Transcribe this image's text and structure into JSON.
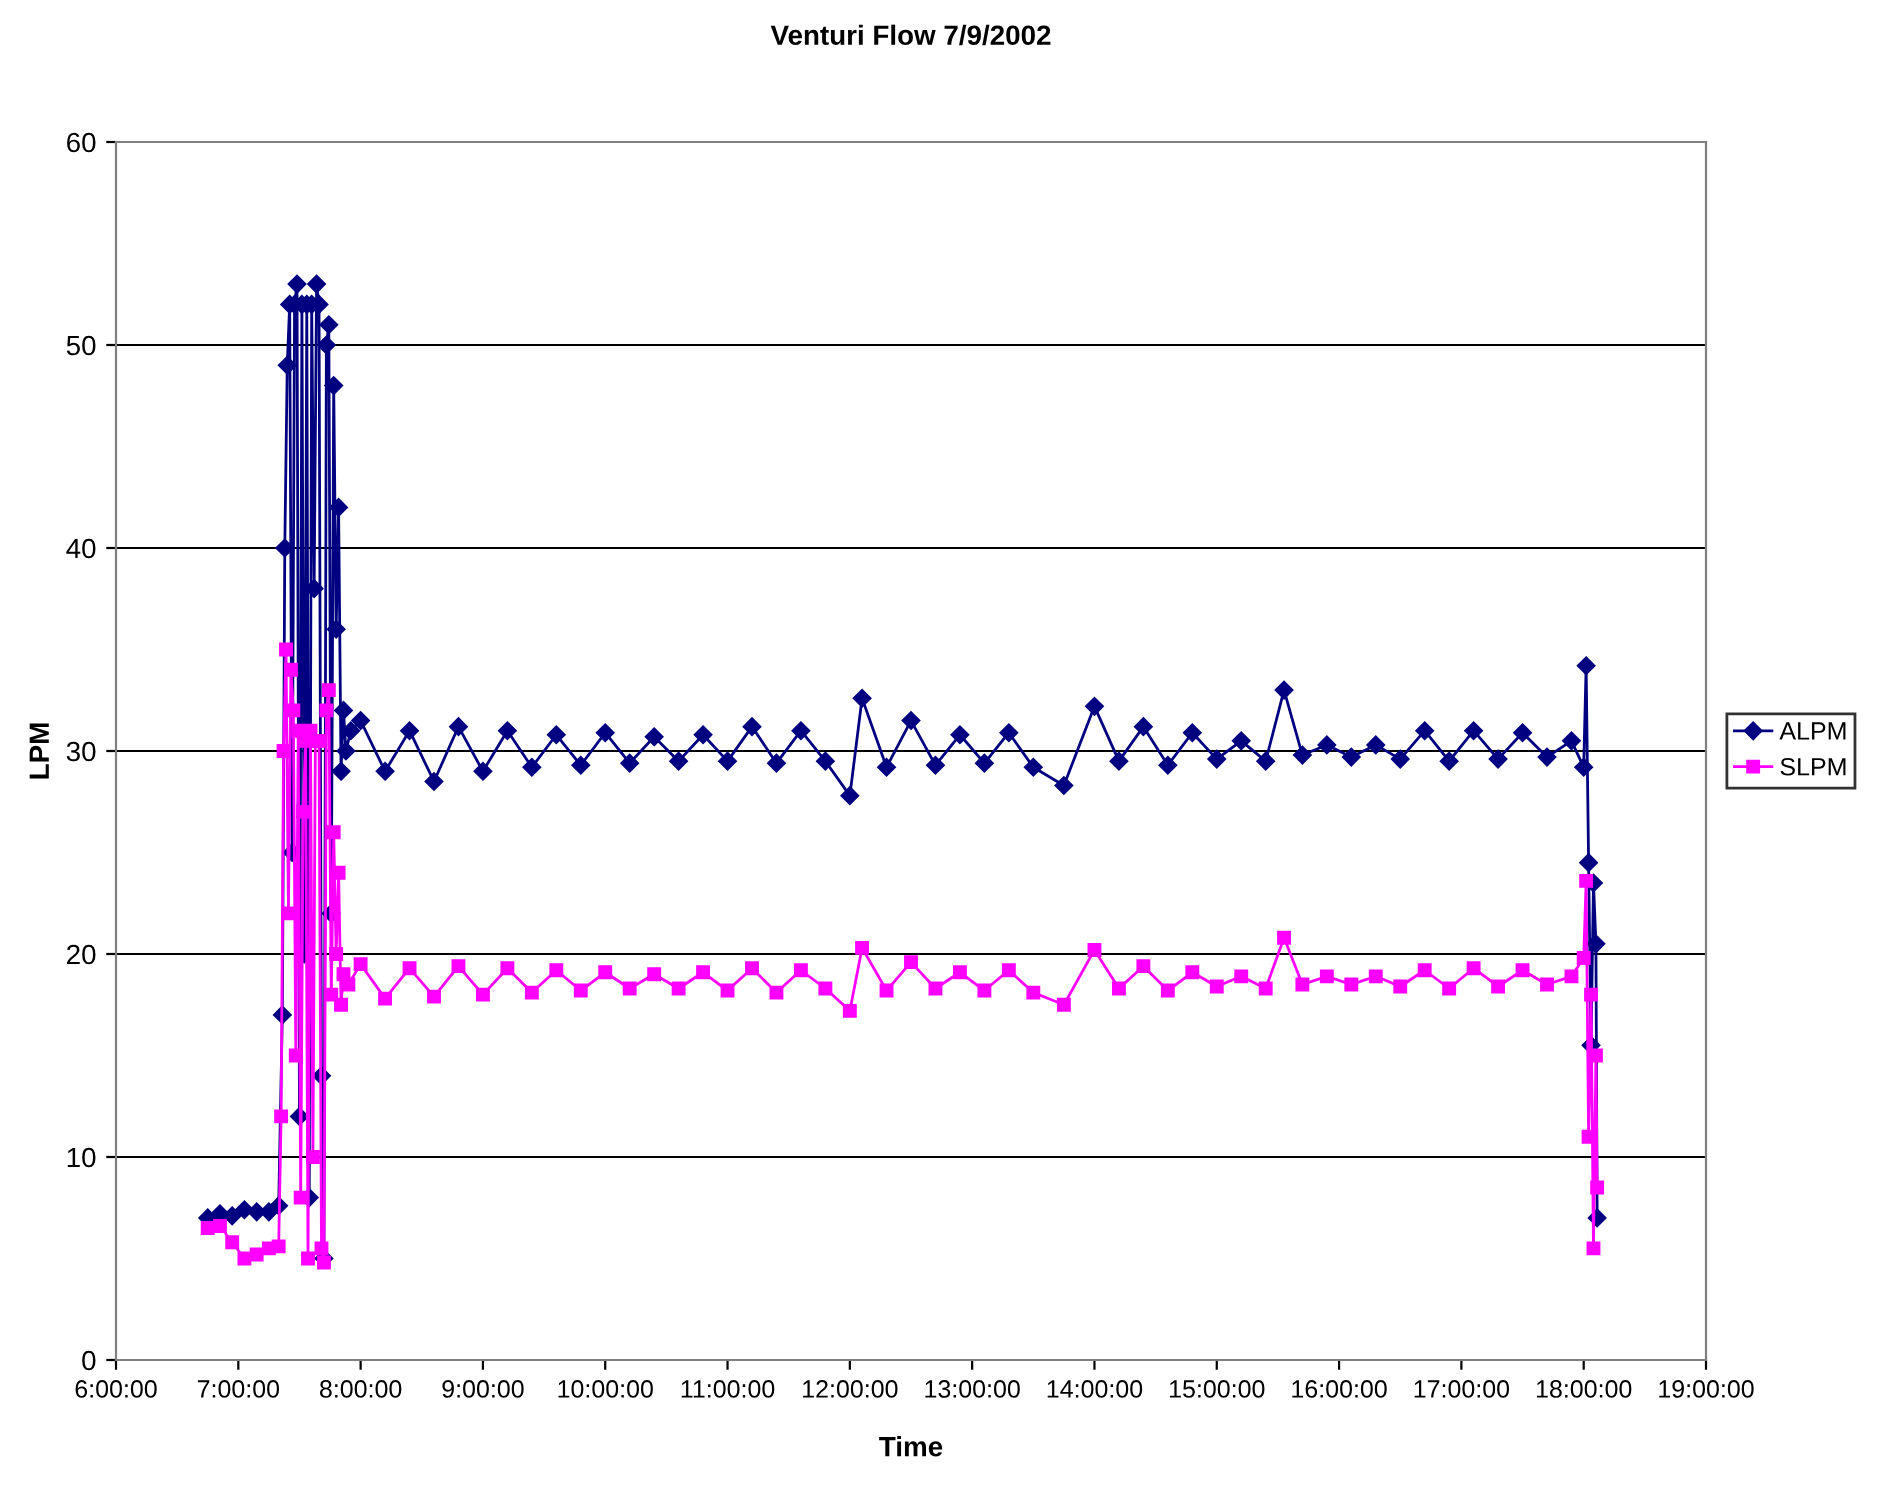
{
  "chart_data": {
    "type": "line",
    "title": "Venturi Flow 7/9/2002",
    "xlabel": "Time",
    "ylabel": "LPM",
    "xlim": [
      6,
      19
    ],
    "ylim": [
      0,
      60
    ],
    "xticks": [
      {
        "value": 6,
        "label": "6:00:00"
      },
      {
        "value": 7,
        "label": "7:00:00"
      },
      {
        "value": 8,
        "label": "8:00:00"
      },
      {
        "value": 9,
        "label": "9:00:00"
      },
      {
        "value": 10,
        "label": "10:00:00"
      },
      {
        "value": 11,
        "label": "11:00:00"
      },
      {
        "value": 12,
        "label": "12:00:00"
      },
      {
        "value": 13,
        "label": "13:00:00"
      },
      {
        "value": 14,
        "label": "14:00:00"
      },
      {
        "value": 15,
        "label": "15:00:00"
      },
      {
        "value": 16,
        "label": "16:00:00"
      },
      {
        "value": 17,
        "label": "17:00:00"
      },
      {
        "value": 18,
        "label": "18:00:00"
      },
      {
        "value": 19,
        "label": "19:00:00"
      }
    ],
    "yticks": [
      0,
      10,
      20,
      30,
      40,
      50,
      60
    ],
    "grid": "y",
    "legend": "right",
    "series": [
      {
        "name": "ALPM",
        "color": "#000080",
        "marker": "diamond",
        "x": [
          6.75,
          6.85,
          6.95,
          7.05,
          7.15,
          7.25,
          7.33,
          7.36,
          7.38,
          7.4,
          7.42,
          7.44,
          7.46,
          7.48,
          7.5,
          7.52,
          7.54,
          7.56,
          7.58,
          7.6,
          7.62,
          7.64,
          7.66,
          7.68,
          7.7,
          7.72,
          7.74,
          7.76,
          7.78,
          7.8,
          7.82,
          7.84,
          7.86,
          7.88,
          7.92,
          8.0,
          8.2,
          8.4,
          8.6,
          8.8,
          9.0,
          9.2,
          9.4,
          9.6,
          9.8,
          10.0,
          10.2,
          10.4,
          10.6,
          10.8,
          11.0,
          11.2,
          11.4,
          11.6,
          11.8,
          12.0,
          12.1,
          12.3,
          12.5,
          12.7,
          12.9,
          13.1,
          13.3,
          13.5,
          13.75,
          14.0,
          14.2,
          14.4,
          14.6,
          14.8,
          15.0,
          15.2,
          15.4,
          15.55,
          15.7,
          15.9,
          16.1,
          16.3,
          16.5,
          16.7,
          16.9,
          17.1,
          17.3,
          17.5,
          17.7,
          17.9,
          18.0,
          18.02,
          18.04,
          18.06,
          18.08,
          18.1,
          18.11
        ],
        "values": [
          7.0,
          7.2,
          7.1,
          7.4,
          7.3,
          7.3,
          7.6,
          17,
          40,
          49,
          52,
          25,
          52,
          53,
          12,
          52,
          20,
          52,
          8,
          52,
          38,
          53,
          52,
          14,
          5,
          50,
          51,
          22,
          48,
          36,
          42,
          29,
          32,
          30,
          31,
          31.5,
          29,
          31,
          28.5,
          31.2,
          29,
          31,
          29.2,
          30.8,
          29.3,
          30.9,
          29.4,
          30.7,
          29.5,
          30.8,
          29.5,
          31.2,
          29.4,
          31,
          29.5,
          27.8,
          32.6,
          29.2,
          31.5,
          29.3,
          30.8,
          29.4,
          30.9,
          29.2,
          28.3,
          32.2,
          29.5,
          31.2,
          29.3,
          30.9,
          29.6,
          30.5,
          29.5,
          33,
          29.8,
          30.3,
          29.7,
          30.3,
          29.6,
          31,
          29.5,
          31,
          29.6,
          30.9,
          29.7,
          30.5,
          29.2,
          34.2,
          24.5,
          15.5,
          23.5,
          20.5,
          7
        ]
      },
      {
        "name": "SLPM",
        "color": "#ff00ff",
        "marker": "square",
        "x": [
          6.75,
          6.85,
          6.95,
          7.05,
          7.15,
          7.25,
          7.33,
          7.35,
          7.37,
          7.39,
          7.41,
          7.43,
          7.45,
          7.47,
          7.49,
          7.51,
          7.53,
          7.55,
          7.57,
          7.59,
          7.61,
          7.63,
          7.66,
          7.68,
          7.7,
          7.72,
          7.74,
          7.76,
          7.78,
          7.8,
          7.82,
          7.84,
          7.86,
          7.9,
          8.0,
          8.2,
          8.4,
          8.6,
          8.8,
          9.0,
          9.2,
          9.4,
          9.6,
          9.8,
          10.0,
          10.2,
          10.4,
          10.6,
          10.8,
          11.0,
          11.2,
          11.4,
          11.6,
          11.8,
          12.0,
          12.1,
          12.3,
          12.5,
          12.7,
          12.9,
          13.1,
          13.3,
          13.5,
          13.75,
          14.0,
          14.2,
          14.4,
          14.6,
          14.8,
          15.0,
          15.2,
          15.4,
          15.55,
          15.7,
          15.9,
          16.1,
          16.3,
          16.5,
          16.7,
          16.9,
          17.1,
          17.3,
          17.5,
          17.7,
          17.9,
          18.0,
          18.02,
          18.04,
          18.06,
          18.08,
          18.1,
          18.11
        ],
        "values": [
          6.5,
          6.6,
          5.8,
          5.0,
          5.2,
          5.5,
          5.6,
          12,
          30,
          35,
          22,
          34,
          32,
          15,
          31,
          8,
          27,
          30.5,
          5,
          31,
          10,
          30.5,
          30.5,
          5.5,
          4.8,
          32,
          33,
          18,
          26,
          20,
          24,
          17.5,
          19,
          18.5,
          19.5,
          17.8,
          19.3,
          17.9,
          19.4,
          18.0,
          19.3,
          18.1,
          19.2,
          18.2,
          19.1,
          18.3,
          19.0,
          18.3,
          19.1,
          18.2,
          19.3,
          18.1,
          19.2,
          18.3,
          17.2,
          20.3,
          18.2,
          19.6,
          18.3,
          19.1,
          18.2,
          19.2,
          18.1,
          17.5,
          20.2,
          18.3,
          19.4,
          18.2,
          19.1,
          18.4,
          18.9,
          18.3,
          20.8,
          18.5,
          18.9,
          18.5,
          18.9,
          18.4,
          19.2,
          18.3,
          19.3,
          18.4,
          19.2,
          18.5,
          18.9,
          19.8,
          23.6,
          11,
          18,
          5.5,
          15,
          8.5
        ]
      }
    ]
  }
}
